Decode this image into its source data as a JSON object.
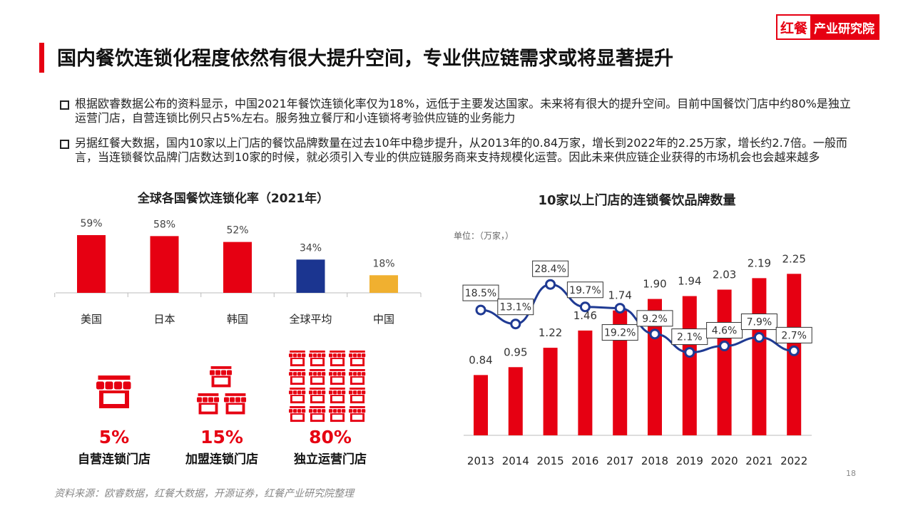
{
  "header": {
    "title": "国内餐饮连锁化程度依然有很大提升空间，专业供应链需求或将显著提升",
    "logo_brand": "红餐",
    "logo_text": "产业研究院"
  },
  "bullets": [
    "根据欧睿数据公布的资料显示，中国2021年餐饮连锁化率仅为18%，远低于主要发达国家。未来将有很大的提升空间。目前中国餐饮门店中约80%是独立运营门店，自营连锁比例只占5%左右。服务独立餐厅和小连锁将考验供应链的业务能力",
    "另据红餐大数据，国内10家以上门店的餐饮品牌数量在过去10年中稳步提升，从2013年的0.84万家，增长到2022年的2.25万家，增长约2.7倍。一般而言，当连锁餐饮品牌门店数达到10家的时候，就必须引入专业的供应链服务商来支持规模化运营。因此未来供应链企业获得的市场机会也会越来越多"
  ],
  "chart_data": [
    {
      "type": "bar",
      "title": "全球各国餐饮连锁化率（2021年）",
      "categories": [
        "美国",
        "日本",
        "韩国",
        "全球平均",
        "中国"
      ],
      "values": [
        59,
        58,
        52,
        34,
        18
      ],
      "value_labels": [
        "59%",
        "58%",
        "52%",
        "34%",
        "18%"
      ],
      "colors": [
        "#e60012",
        "#e60012",
        "#e60012",
        "#1b3590",
        "#f0b030"
      ]
    },
    {
      "type": "bar_line",
      "title": "10家以上门店的连锁餐饮品牌数量",
      "unit_label": "单位：（万家，）",
      "categories": [
        "2013",
        "2014",
        "2015",
        "2016",
        "2017",
        "2018",
        "2019",
        "2020",
        "2021",
        "2022"
      ],
      "ylim": [
        0,
        2.7
      ],
      "y2lim": [
        -30,
        45
      ],
      "series": [
        {
          "type": "bar",
          "color": "#e60012",
          "values": [
            0.84,
            0.95,
            1.22,
            1.46,
            1.74,
            1.9,
            1.94,
            2.03,
            2.19,
            2.25
          ],
          "value_labels": [
            "0.84",
            "0.95",
            "1.22",
            "1.46",
            "1.74",
            "1.90",
            "1.94",
            "2.03",
            "2.19",
            "2.25"
          ]
        },
        {
          "type": "line",
          "axis": "y2",
          "color": "#1f3a93",
          "values": [
            18.5,
            13.1,
            28.4,
            19.7,
            19.2,
            9.2,
            2.1,
            4.6,
            7.9,
            2.7
          ],
          "value_labels": [
            "18.5%",
            "13.1%",
            "28.4%",
            "19.7%",
            "19.2%",
            "9.2%",
            "2.1%",
            "4.6%",
            "7.9%",
            "2.7%"
          ]
        }
      ]
    }
  ],
  "stats": [
    {
      "value": "5%",
      "label": "自营连锁门店"
    },
    {
      "value": "15%",
      "label": "加盟连锁门店"
    },
    {
      "value": "80%",
      "label": "独立运营门店"
    }
  ],
  "source": "资料来源：欧睿数据，红餐大数据，开源证券，红餐产业研究院整理",
  "page_number": "18"
}
